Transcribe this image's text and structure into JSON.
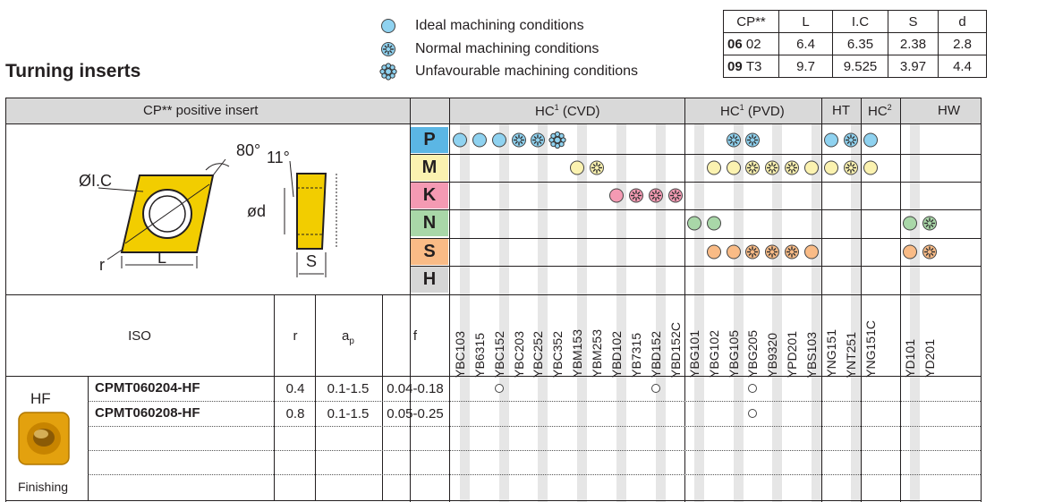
{
  "title": "Turning inserts",
  "legend": [
    {
      "label": "Ideal machining conditions",
      "icon": "ideal-icon"
    },
    {
      "label": "Normal machining conditions",
      "icon": "normal-icon"
    },
    {
      "label": "Unfavourable machining conditions",
      "icon": "unfavourable-icon"
    }
  ],
  "dims_table": {
    "headers": [
      "CP**",
      "L",
      "I.C",
      "S",
      "d"
    ],
    "rows": [
      {
        "code": "06",
        "sub": "02",
        "L": "6.4",
        "IC": "6.35",
        "S": "2.38",
        "d": "2.8"
      },
      {
        "code": "09",
        "sub": "T3",
        "L": "9.7",
        "IC": "9.525",
        "S": "3.97",
        "d": "4.4"
      }
    ]
  },
  "header": {
    "insert": "CP** positive insert",
    "groups": [
      {
        "label": "HC",
        "sup": "1",
        "suffix": " (CVD)"
      },
      {
        "label": "HC",
        "sup": "1",
        "suffix": " (PVD)"
      },
      {
        "label": "HT",
        "sup": "",
        "suffix": ""
      },
      {
        "label": "HC",
        "sup": "2",
        "suffix": ""
      },
      {
        "label": "HW",
        "sup": "",
        "suffix": ""
      }
    ]
  },
  "diagram": {
    "angle1": "80°",
    "angle2": "11°",
    "ic": "ØI.C",
    "d": "ød",
    "r": "r",
    "L": "L",
    "S": "S"
  },
  "materials": [
    "P",
    "M",
    "K",
    "N",
    "S",
    "H"
  ],
  "material_colors": {
    "P": "#5bb6e4",
    "M": "#fbf2b0",
    "K": "#f49ab3",
    "N": "#a9d7a8",
    "S": "#f9bb86",
    "H": "#d6d6d6"
  },
  "grades": [
    "YBC103",
    "YB6315",
    "YBC152",
    "YBC203",
    "YBC252",
    "YBC352",
    "YBM153",
    "YBM253",
    "YBD102",
    "YB7315",
    "YBD152",
    "YBD152C",
    "YBG101",
    "YBG102",
    "YBG105",
    "YBG205",
    "YB9320",
    "YPD201",
    "YBS103",
    "YNG151",
    "YNT251",
    "YNG151C",
    "YD101",
    "YD201"
  ],
  "grade_table_header": {
    "iso": "ISO",
    "r": "r",
    "ap": "a",
    "ap_sub": "p",
    "f": "f"
  },
  "suitability": {
    "P": [
      [
        "ideal",
        0
      ],
      [
        "ideal",
        1
      ],
      [
        "ideal",
        2
      ],
      [
        "normal",
        3
      ],
      [
        "normal",
        4
      ],
      [
        "unfavourable",
        5
      ],
      [
        "normal",
        14
      ],
      [
        "normal",
        15
      ],
      [
        "ideal",
        19
      ],
      [
        "normal",
        20
      ],
      [
        "ideal",
        21
      ]
    ],
    "M": [
      [
        "ideal",
        6
      ],
      [
        "normal",
        7
      ],
      [
        "ideal",
        13
      ],
      [
        "ideal",
        14
      ],
      [
        "normal",
        15
      ],
      [
        "normal",
        16
      ],
      [
        "normal",
        17
      ],
      [
        "ideal",
        18
      ],
      [
        "ideal",
        19
      ],
      [
        "normal",
        20
      ],
      [
        "ideal",
        21
      ]
    ],
    "K": [
      [
        "ideal",
        8
      ],
      [
        "normal",
        9
      ],
      [
        "normal",
        10
      ],
      [
        "normal",
        11
      ]
    ],
    "N": [
      [
        "ideal",
        12
      ],
      [
        "ideal",
        13
      ],
      [
        "ideal",
        22
      ],
      [
        "normal",
        23
      ]
    ],
    "S": [
      [
        "ideal",
        13
      ],
      [
        "ideal",
        14
      ],
      [
        "normal",
        15
      ],
      [
        "normal",
        16
      ],
      [
        "normal",
        17
      ],
      [
        "ideal",
        18
      ],
      [
        "ideal",
        22
      ],
      [
        "normal",
        23
      ]
    ],
    "H": []
  },
  "product": {
    "chipbreaker": "HF",
    "application": "Finishing",
    "rows": [
      {
        "iso": "CPMT060204-HF",
        "r": "0.4",
        "ap": "0.1-1.5",
        "f": "0.04-0.18",
        "available": [
          2,
          10,
          15
        ]
      },
      {
        "iso": "CPMT060208-HF",
        "r": "0.8",
        "ap": "0.1-1.5",
        "f": "0.05-0.25",
        "available": [
          15
        ]
      }
    ]
  }
}
